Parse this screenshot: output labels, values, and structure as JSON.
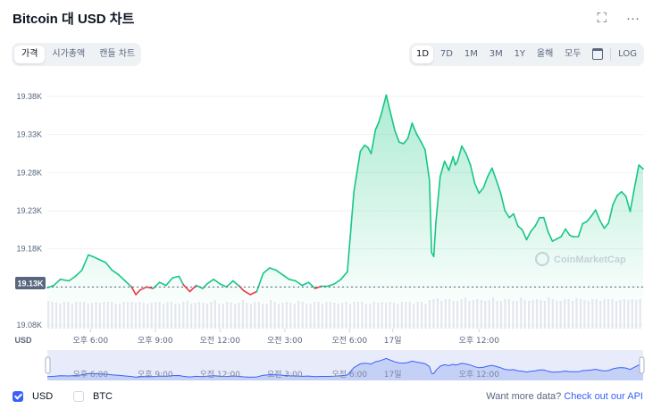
{
  "header": {
    "title": "Bitcoin 대 USD 차트",
    "fullscreen_icon": "⛶",
    "more_icon": "···"
  },
  "view_tabs": [
    {
      "label": "가격",
      "active": true
    },
    {
      "label": "시가총액",
      "active": false
    },
    {
      "label": "캔들 차트",
      "active": false
    }
  ],
  "range_tabs": [
    {
      "label": "1D",
      "active": true
    },
    {
      "label": "7D",
      "active": false
    },
    {
      "label": "1M",
      "active": false
    },
    {
      "label": "3M",
      "active": false
    },
    {
      "label": "1Y",
      "active": false
    },
    {
      "label": "올해",
      "active": false
    },
    {
      "label": "모두",
      "active": false
    }
  ],
  "log_label": "LOG",
  "footer": {
    "usd_label": "USD",
    "usd_checked": true,
    "btc_label": "BTC",
    "btc_checked": false,
    "more_data": "Want more data?",
    "api_link": "Check out our API"
  },
  "chart_data": {
    "type": "area",
    "currency_label": "USD",
    "watermark": "CoinMarketCap",
    "y_ticks": [
      "19.38K",
      "19.33K",
      "19.28K",
      "19.23K",
      "19.18K",
      "19.13K",
      "19.08K"
    ],
    "y_values": [
      19380,
      19330,
      19280,
      19230,
      19180,
      19130,
      19080
    ],
    "ylim": [
      19080,
      19380
    ],
    "open_price": 19130,
    "open_price_label": "19.13K",
    "x_ticks": [
      "오후 6:00",
      "오후 9:00",
      "오전 12:00",
      "오전 3:00",
      "오전 6:00",
      "17일",
      "오후 12:00"
    ],
    "x_tick_hours": [
      2,
      5,
      8,
      11,
      14,
      16,
      20
    ],
    "x_range_hours": [
      0,
      24.4
    ],
    "up_color": "#16c784",
    "down_color": "#ea3943",
    "series": [
      {
        "points": [
          [
            0,
            19129
          ],
          [
            0.3,
            19132
          ],
          [
            0.6,
            19140
          ],
          [
            1.0,
            19138
          ],
          [
            1.3,
            19144
          ],
          [
            1.6,
            19152
          ],
          [
            1.9,
            19172
          ],
          [
            2.1,
            19170
          ],
          [
            2.4,
            19166
          ],
          [
            2.7,
            19162
          ],
          [
            3.0,
            19152
          ],
          [
            3.3,
            19146
          ],
          [
            3.6,
            19138
          ],
          [
            3.9,
            19130
          ],
          [
            4.1,
            19120
          ],
          [
            4.3,
            19126
          ],
          [
            4.6,
            19130
          ],
          [
            4.9,
            19128
          ],
          [
            5.2,
            19136
          ],
          [
            5.5,
            19132
          ],
          [
            5.8,
            19142
          ],
          [
            6.1,
            19144
          ],
          [
            6.3,
            19133
          ],
          [
            6.6,
            19124
          ],
          [
            6.9,
            19132
          ],
          [
            7.2,
            19128
          ],
          [
            7.4,
            19134
          ],
          [
            7.7,
            19140
          ],
          [
            8.0,
            19134
          ],
          [
            8.3,
            19130
          ],
          [
            8.6,
            19138
          ],
          [
            8.9,
            19131
          ],
          [
            9.1,
            19125
          ],
          [
            9.4,
            19120
          ],
          [
            9.7,
            19124
          ],
          [
            10.0,
            19148
          ],
          [
            10.3,
            19155
          ],
          [
            10.6,
            19152
          ],
          [
            10.9,
            19146
          ],
          [
            11.2,
            19140
          ],
          [
            11.5,
            19138
          ],
          [
            11.8,
            19132
          ],
          [
            12.1,
            19136
          ],
          [
            12.4,
            19128
          ],
          [
            12.7,
            19131
          ],
          [
            13.0,
            19131
          ],
          [
            13.3,
            19134
          ],
          [
            13.6,
            19140
          ],
          [
            13.9,
            19150
          ],
          [
            14.2,
            19255
          ],
          [
            14.5,
            19308
          ],
          [
            14.7,
            19316
          ],
          [
            14.85,
            19313
          ],
          [
            15.0,
            19305
          ],
          [
            15.2,
            19336
          ],
          [
            15.35,
            19346
          ],
          [
            15.5,
            19360
          ],
          [
            15.7,
            19382
          ],
          [
            15.9,
            19358
          ],
          [
            16.1,
            19335
          ],
          [
            16.3,
            19320
          ],
          [
            16.5,
            19318
          ],
          [
            16.7,
            19325
          ],
          [
            16.9,
            19345
          ],
          [
            17.1,
            19331
          ],
          [
            17.3,
            19321
          ],
          [
            17.5,
            19310
          ],
          [
            17.7,
            19270
          ],
          [
            17.8,
            19175
          ],
          [
            17.9,
            19170
          ],
          [
            18.0,
            19215
          ],
          [
            18.2,
            19275
          ],
          [
            18.4,
            19295
          ],
          [
            18.6,
            19283
          ],
          [
            18.8,
            19301
          ],
          [
            18.9,
            19290
          ],
          [
            19.0,
            19295
          ],
          [
            19.2,
            19315
          ],
          [
            19.4,
            19305
          ],
          [
            19.6,
            19290
          ],
          [
            19.8,
            19266
          ],
          [
            20.0,
            19253
          ],
          [
            20.2,
            19260
          ],
          [
            20.4,
            19275
          ],
          [
            20.6,
            19286
          ],
          [
            20.8,
            19270
          ],
          [
            21.0,
            19253
          ],
          [
            21.2,
            19230
          ],
          [
            21.4,
            19221
          ],
          [
            21.6,
            19226
          ],
          [
            21.8,
            19210
          ],
          [
            22.0,
            19205
          ],
          [
            22.2,
            19192
          ],
          [
            22.4,
            19203
          ],
          [
            22.6,
            19210
          ],
          [
            22.8,
            19221
          ],
          [
            23.0,
            19221
          ],
          [
            23.2,
            19202
          ],
          [
            23.4,
            19190
          ],
          [
            23.6,
            19193
          ],
          [
            23.8,
            19196
          ],
          [
            24.0,
            19206
          ],
          [
            24.2,
            19198
          ],
          [
            24.35,
            19196
          ],
          [
            24.6,
            19196
          ],
          [
            24.8,
            19213
          ],
          [
            25.0,
            19216
          ],
          [
            25.2,
            19223
          ],
          [
            25.4,
            19231
          ],
          [
            25.6,
            19217
          ],
          [
            25.8,
            19207
          ],
          [
            26.0,
            19214
          ],
          [
            26.2,
            19238
          ],
          [
            26.4,
            19250
          ],
          [
            26.6,
            19255
          ],
          [
            26.8,
            19249
          ],
          [
            27.0,
            19229
          ],
          [
            27.2,
            19260
          ],
          [
            27.4,
            19290
          ],
          [
            27.6,
            19285
          ]
        ]
      }
    ]
  }
}
